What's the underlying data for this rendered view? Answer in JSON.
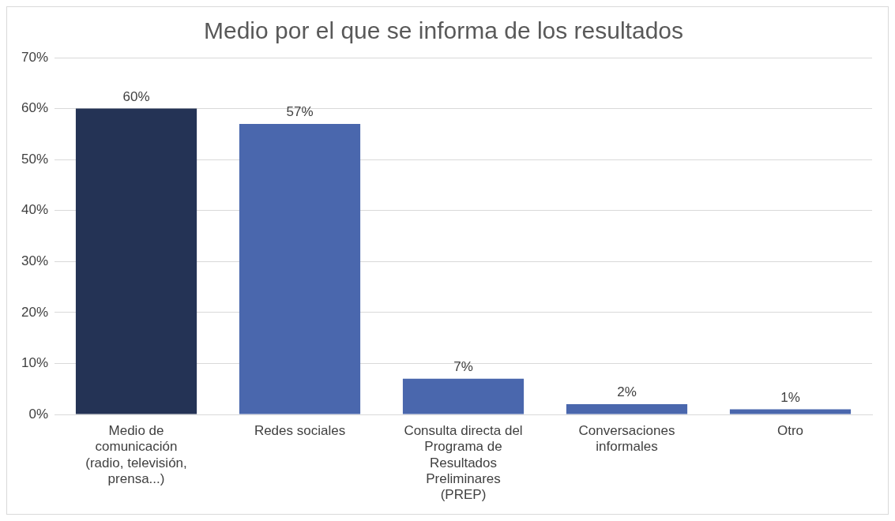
{
  "chart_data": {
    "type": "bar",
    "title": "Medio por el que se informa de los resultados",
    "categories": [
      "Medio de comunicación (radio, televisión, prensa...)",
      "Redes sociales",
      "Consulta directa del Programa de Resultados Preliminares (PREP)",
      "Conversaciones informales",
      "Otro"
    ],
    "values": [
      60,
      57,
      7,
      2,
      1
    ],
    "colors": [
      "#243355",
      "#4a67ad",
      "#4a67ad",
      "#4a67ad",
      "#4a67ad"
    ],
    "value_labels": [
      "60%",
      "57%",
      "7%",
      "2%",
      "1%"
    ],
    "ylim": [
      0,
      70
    ],
    "yticks": [
      {
        "value": 0,
        "label": "0%"
      },
      {
        "value": 10,
        "label": "10%"
      },
      {
        "value": 20,
        "label": "20%"
      },
      {
        "value": 30,
        "label": "30%"
      },
      {
        "value": 40,
        "label": "40%"
      },
      {
        "value": 50,
        "label": "50%"
      },
      {
        "value": 60,
        "label": "60%"
      },
      {
        "value": 70,
        "label": "70%"
      }
    ],
    "grid": "y",
    "legend": false
  }
}
